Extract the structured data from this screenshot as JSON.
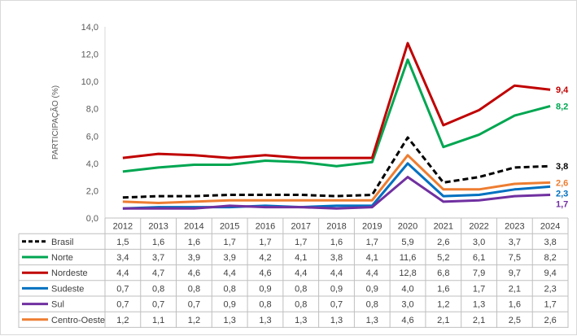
{
  "chart_data": {
    "type": "line",
    "title": "",
    "xlabel": "",
    "ylabel": "PARTICIPAÇÃO (%)",
    "ylim": [
      0,
      14
    ],
    "y_ticks": [
      "0,0",
      "2,0",
      "4,0",
      "6,0",
      "8,0",
      "10,0",
      "12,0",
      "14,0"
    ],
    "grid": false,
    "legend_placement": "data-table-below",
    "categories": [
      "2012",
      "2013",
      "2014",
      "2015",
      "2016",
      "2017",
      "2018",
      "2019",
      "2020",
      "2021",
      "2022",
      "2023",
      "2024"
    ],
    "series": [
      {
        "name": "Brasil",
        "color": "#000000",
        "dashed": true,
        "values": [
          1.5,
          1.6,
          1.6,
          1.7,
          1.7,
          1.7,
          1.6,
          1.7,
          5.9,
          2.6,
          3.0,
          3.7,
          3.8
        ],
        "labels": [
          "1,5",
          "1,6",
          "1,6",
          "1,7",
          "1,7",
          "1,7",
          "1,6",
          "1,7",
          "5,9",
          "2,6",
          "3,0",
          "3,7",
          "3,8"
        ]
      },
      {
        "name": "Norte",
        "color": "#00a651",
        "dashed": false,
        "values": [
          3.4,
          3.7,
          3.9,
          3.9,
          4.2,
          4.1,
          3.8,
          4.1,
          11.6,
          5.2,
          6.1,
          7.5,
          8.2
        ],
        "labels": [
          "3,4",
          "3,7",
          "3,9",
          "3,9",
          "4,2",
          "4,1",
          "3,8",
          "4,1",
          "11,6",
          "5,2",
          "6,1",
          "7,5",
          "8,2"
        ]
      },
      {
        "name": "Nordeste",
        "color": "#c00000",
        "dashed": false,
        "values": [
          4.4,
          4.7,
          4.6,
          4.4,
          4.6,
          4.4,
          4.4,
          4.4,
          12.8,
          6.8,
          7.9,
          9.7,
          9.4
        ],
        "labels": [
          "4,4",
          "4,7",
          "4,6",
          "4,4",
          "4,6",
          "4,4",
          "4,4",
          "4,4",
          "12,8",
          "6,8",
          "7,9",
          "9,7",
          "9,4"
        ]
      },
      {
        "name": "Sudeste",
        "color": "#0070c0",
        "dashed": false,
        "values": [
          0.7,
          0.8,
          0.8,
          0.8,
          0.9,
          0.8,
          0.9,
          0.9,
          4.0,
          1.6,
          1.7,
          2.1,
          2.3
        ],
        "labels": [
          "0,7",
          "0,8",
          "0,8",
          "0,8",
          "0,9",
          "0,8",
          "0,9",
          "0,9",
          "4,0",
          "1,6",
          "1,7",
          "2,1",
          "2,3"
        ]
      },
      {
        "name": "Sul",
        "color": "#7030a0",
        "dashed": false,
        "values": [
          0.7,
          0.7,
          0.7,
          0.9,
          0.8,
          0.8,
          0.7,
          0.8,
          3.0,
          1.2,
          1.3,
          1.6,
          1.7
        ],
        "labels": [
          "0,7",
          "0,7",
          "0,7",
          "0,9",
          "0,8",
          "0,8",
          "0,7",
          "0,8",
          "3,0",
          "1,2",
          "1,3",
          "1,6",
          "1,7"
        ]
      },
      {
        "name": "Centro-Oeste",
        "color": "#ed7d31",
        "dashed": false,
        "values": [
          1.2,
          1.1,
          1.2,
          1.3,
          1.3,
          1.3,
          1.3,
          1.3,
          4.6,
          2.1,
          2.1,
          2.5,
          2.6
        ],
        "labels": [
          "1,2",
          "1,1",
          "1,2",
          "1,3",
          "1,3",
          "1,3",
          "1,3",
          "1,3",
          "4,6",
          "2,1",
          "2,1",
          "2,5",
          "2,6"
        ]
      }
    ],
    "end_labels": [
      {
        "series": "Nordeste",
        "text": "9,4"
      },
      {
        "series": "Norte",
        "text": "8,2"
      },
      {
        "series": "Brasil",
        "text": "3,8"
      },
      {
        "series": "Centro-Oeste",
        "text": "2,6"
      },
      {
        "series": "Sudeste",
        "text": "2,3"
      },
      {
        "series": "Sul",
        "text": "1,7"
      }
    ]
  }
}
